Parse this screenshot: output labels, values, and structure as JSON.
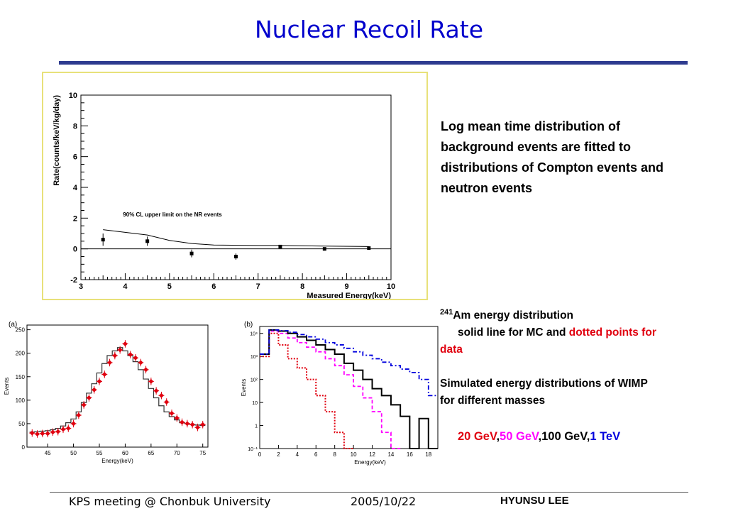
{
  "slide": {
    "title": "Nuclear Recoil Rate",
    "description": "Log mean time distribution of background events are fitted to distributions of Compton events and neutron events",
    "am_text": {
      "line1_sup": "241",
      "line1": "Am energy distribution",
      "line2": "solid line for MC and ",
      "line2_red": "dotted points for",
      "line3_red": "data",
      "line4": "Simulated energy distributions of WIMP",
      "line5": "for different masses"
    },
    "masses": {
      "m20": "20 GeV",
      "m50": "50 GeV",
      "m100": "100 GeV",
      "m1": "1 TeV",
      "sep": ","
    },
    "footer": {
      "left": "KPS meeting @ Chonbuk University",
      "date": "2005/10/22",
      "right": "HYUNSU LEE"
    },
    "colors": {
      "title": "#0000cc",
      "rule": "#2e3b8f",
      "frame": "#e8e17a",
      "red": "#e0000f",
      "magenta": "#ff00ff",
      "blue": "#0000dd"
    }
  },
  "chart_data": [
    {
      "type": "scatter",
      "xlabel": "Measured Energy(keV)",
      "ylabel": "Rate(counts/keV/kg/day)",
      "xlim": [
        3,
        10
      ],
      "ylim": [
        -2,
        10
      ],
      "xticks": [
        3,
        4,
        5,
        6,
        7,
        8,
        9,
        10
      ],
      "yticks": [
        -2,
        0,
        2,
        4,
        6,
        8,
        10
      ],
      "annotation": "90% CL upper limit on the NR events",
      "points": [
        {
          "x": 3.5,
          "y": 0.6,
          "err": 0.4
        },
        {
          "x": 4.5,
          "y": 0.5,
          "err": 0.3
        },
        {
          "x": 5.5,
          "y": -0.3,
          "err": 0.25
        },
        {
          "x": 6.5,
          "y": -0.5,
          "err": 0.2
        },
        {
          "x": 7.5,
          "y": 0.15,
          "err": 0.1
        },
        {
          "x": 8.5,
          "y": 0.0,
          "err": 0.08
        },
        {
          "x": 9.5,
          "y": 0.05,
          "err": 0.08
        }
      ],
      "limit_curve": [
        [
          3.5,
          1.25
        ],
        [
          4.5,
          0.9
        ],
        [
          5.0,
          0.55
        ],
        [
          5.5,
          0.35
        ],
        [
          6.0,
          0.25
        ],
        [
          7.0,
          0.22
        ],
        [
          7.5,
          0.22
        ],
        [
          8.5,
          0.18
        ],
        [
          9.5,
          0.15
        ]
      ],
      "zero_line": 0
    },
    {
      "type": "scatter",
      "panel_label": "(a)",
      "xlabel": "Energy(keV)",
      "ylabel": "Events",
      "xlim": [
        41,
        76
      ],
      "ylim": [
        0,
        260
      ],
      "xticks": [
        45,
        50,
        55,
        60,
        65,
        70,
        75
      ],
      "yticks": [
        0,
        50,
        100,
        150,
        200,
        250
      ],
      "data_points": [
        [
          42,
          30
        ],
        [
          43,
          28
        ],
        [
          44,
          29
        ],
        [
          45,
          29
        ],
        [
          46,
          32
        ],
        [
          47,
          33
        ],
        [
          48,
          38
        ],
        [
          49,
          40
        ],
        [
          50,
          50
        ],
        [
          51,
          68
        ],
        [
          52,
          90
        ],
        [
          53,
          105
        ],
        [
          54,
          122
        ],
        [
          55,
          140
        ],
        [
          56,
          155
        ],
        [
          57,
          180
        ],
        [
          58,
          195
        ],
        [
          59,
          207
        ],
        [
          60,
          220
        ],
        [
          61,
          197
        ],
        [
          62,
          190
        ],
        [
          63,
          180
        ],
        [
          64,
          165
        ],
        [
          65,
          140
        ],
        [
          66,
          120
        ],
        [
          67,
          110
        ],
        [
          68,
          96
        ],
        [
          69,
          72
        ],
        [
          70,
          62
        ],
        [
          71,
          53
        ],
        [
          72,
          50
        ],
        [
          73,
          48
        ],
        [
          74,
          42
        ],
        [
          75,
          48
        ]
      ],
      "mc_histogram": [
        [
          42,
          32
        ],
        [
          43,
          33
        ],
        [
          44,
          34
        ],
        [
          45,
          35
        ],
        [
          46,
          37
        ],
        [
          47,
          40
        ],
        [
          48,
          45
        ],
        [
          49,
          52
        ],
        [
          50,
          60
        ],
        [
          51,
          75
        ],
        [
          52,
          95
        ],
        [
          53,
          115
        ],
        [
          54,
          135
        ],
        [
          55,
          158
        ],
        [
          56,
          178
        ],
        [
          57,
          195
        ],
        [
          58,
          205
        ],
        [
          59,
          212
        ],
        [
          60,
          205
        ],
        [
          61,
          195
        ],
        [
          62,
          182
        ],
        [
          63,
          165
        ],
        [
          64,
          145
        ],
        [
          65,
          125
        ],
        [
          66,
          105
        ],
        [
          67,
          88
        ],
        [
          68,
          75
        ],
        [
          69,
          65
        ],
        [
          70,
          58
        ],
        [
          71,
          52
        ],
        [
          72,
          50
        ],
        [
          73,
          48
        ],
        [
          74,
          47
        ],
        [
          75,
          46
        ]
      ]
    },
    {
      "type": "line",
      "panel_label": "(b)",
      "xlabel": "Energy(keV)",
      "ylabel": "Events",
      "xlim": [
        0,
        19
      ],
      "ylim_log10": [
        -1,
        4.3
      ],
      "scale": "log",
      "xticks": [
        0,
        2,
        4,
        6,
        8,
        10,
        12,
        14,
        16,
        18
      ],
      "ytick_labels": [
        "10⁻¹",
        "1",
        "10",
        "10²",
        "10³",
        "10⁴"
      ],
      "series": [
        {
          "color": "#e0000f",
          "style": "dotted",
          "values_log10": [
            [
              0,
              3.0
            ],
            [
              1,
              4.0
            ],
            [
              2,
              3.5
            ],
            [
              3,
              2.9
            ],
            [
              4,
              2.5
            ],
            [
              5,
              2.0
            ],
            [
              6,
              1.3
            ],
            [
              7,
              0.6
            ],
            [
              8,
              -0.3
            ],
            [
              9,
              -1.0
            ]
          ]
        },
        {
          "color": "#ff00ff",
          "style": "dashed",
          "values_log10": [
            [
              0,
              3.1
            ],
            [
              1,
              4.1
            ],
            [
              2,
              4.0
            ],
            [
              3,
              3.8
            ],
            [
              4,
              3.6
            ],
            [
              5,
              3.4
            ],
            [
              6,
              3.2
            ],
            [
              7,
              2.9
            ],
            [
              8,
              2.6
            ],
            [
              9,
              2.2
            ],
            [
              10,
              1.7
            ],
            [
              11,
              1.2
            ],
            [
              12,
              0.6
            ],
            [
              13,
              -0.3
            ],
            [
              14,
              -1.0
            ]
          ]
        },
        {
          "color": "#000000",
          "style": "solid",
          "values_log10": [
            [
              0,
              3.1
            ],
            [
              1,
              4.15
            ],
            [
              2,
              4.1
            ],
            [
              3,
              4.0
            ],
            [
              4,
              3.85
            ],
            [
              5,
              3.7
            ],
            [
              6,
              3.5
            ],
            [
              7,
              3.3
            ],
            [
              8,
              3.1
            ],
            [
              9,
              2.7
            ],
            [
              10,
              2.4
            ],
            [
              11,
              2.0
            ],
            [
              12,
              1.6
            ],
            [
              13,
              1.3
            ],
            [
              14,
              0.9
            ],
            [
              15,
              0.4
            ],
            [
              16,
              -1.0
            ],
            [
              17,
              0.3
            ],
            [
              18,
              -1.0
            ]
          ]
        },
        {
          "color": "#0000dd",
          "style": "dashdot",
          "values_log10": [
            [
              0,
              3.1
            ],
            [
              1,
              4.15
            ],
            [
              2,
              4.12
            ],
            [
              3,
              4.05
            ],
            [
              4,
              3.95
            ],
            [
              5,
              3.85
            ],
            [
              6,
              3.75
            ],
            [
              7,
              3.6
            ],
            [
              8,
              3.5
            ],
            [
              9,
              3.35
            ],
            [
              10,
              3.2
            ],
            [
              11,
              3.05
            ],
            [
              12,
              2.9
            ],
            [
              13,
              2.75
            ],
            [
              14,
              2.6
            ],
            [
              15,
              2.45
            ],
            [
              16,
              2.3
            ],
            [
              17,
              2.0
            ],
            [
              18,
              1.3
            ]
          ]
        }
      ]
    }
  ]
}
